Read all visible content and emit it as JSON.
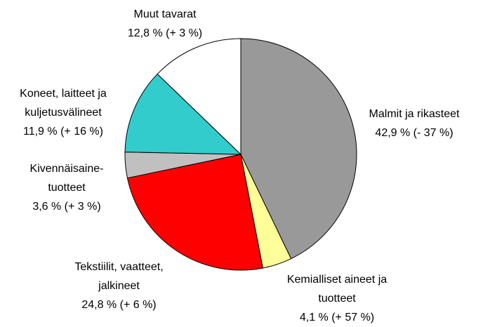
{
  "chart_data": {
    "type": "pie",
    "categories": [
      "Malmit ja rikasteet",
      "Kemialliset aineet ja tuotteet",
      "Tekstiilit, vaatteet, jalkineet",
      "Kivennäisaine-tuotteet",
      "Koneet, laitteet ja kuljetusvälineet",
      "Muut tavarat"
    ],
    "values": [
      42.9,
      4.1,
      24.8,
      3.6,
      11.9,
      12.8
    ],
    "value_labels": [
      "42,9 % (- 37 %)",
      "4,1 % (+ 57 %)",
      "24,8 % (+ 6 %)",
      "3,6 % (+ 3 %)",
      "11,9 % (+ 16 %)",
      "12,8 % (+ 3 %)"
    ],
    "colors": [
      "#999999",
      "#ffff99",
      "#ff0000",
      "#c0c0c0",
      "#33cccc",
      "#ffffff"
    ]
  }
}
